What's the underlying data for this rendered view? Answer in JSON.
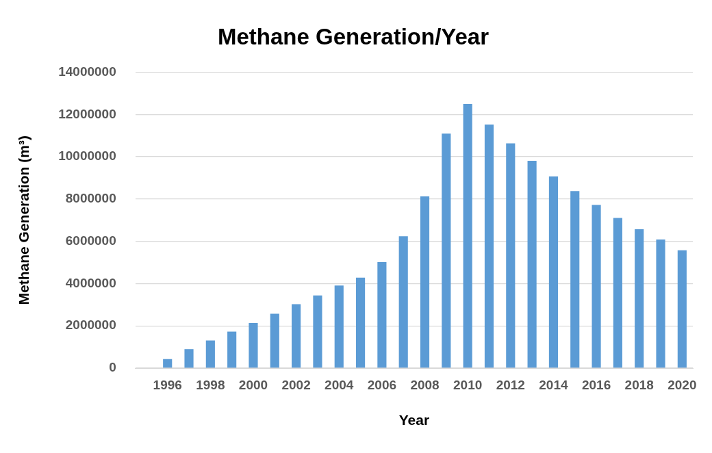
{
  "chart_data": {
    "type": "bar",
    "title": "Methane Generation/Year",
    "xlabel": "Year",
    "ylabel": "Methane Generation (m³)",
    "categories": [
      null,
      "1996",
      null,
      "1998",
      null,
      "2000",
      null,
      "2002",
      null,
      "2004",
      null,
      "2006",
      null,
      "2008",
      null,
      "2010",
      null,
      "2012",
      null,
      "2014",
      null,
      "2016",
      null,
      "2018",
      null,
      "2020"
    ],
    "values": [
      0,
      430000,
      900000,
      1310000,
      1730000,
      2140000,
      2570000,
      3030000,
      3440000,
      3910000,
      4280000,
      5020000,
      6240000,
      8130000,
      11100000,
      12500000,
      11530000,
      10640000,
      9810000,
      9070000,
      8380000,
      7720000,
      7110000,
      6570000,
      6090000,
      5580000
    ],
    "color": "#5b9bd5",
    "ylim": [
      0,
      14000000
    ],
    "yticks": [
      0,
      2000000,
      4000000,
      6000000,
      8000000,
      10000000,
      12000000,
      14000000
    ],
    "grid": "y",
    "legend": false
  }
}
